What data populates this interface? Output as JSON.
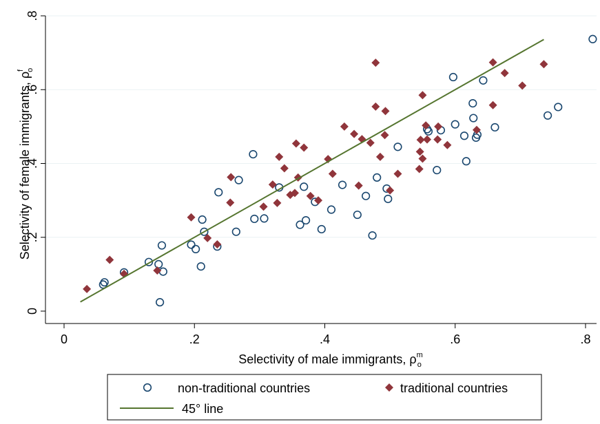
{
  "chart_data": {
    "type": "scatter",
    "xlabel": "Selectivity of male immigrants, ρ",
    "xlabel_sup": "m",
    "xlabel_sub": "o",
    "ylabel": "Selectivity of female immigrants, ρ",
    "ylabel_sup": "f",
    "ylabel_sub": "o",
    "xlim": [
      0,
      0.8
    ],
    "ylim": [
      0,
      0.8
    ],
    "x_ticks": [
      0,
      0.2,
      0.4,
      0.6,
      0.8
    ],
    "x_tick_labels": [
      "0",
      ".2",
      ".4",
      ".6",
      ".8"
    ],
    "y_ticks": [
      0,
      0.2,
      0.4,
      0.6,
      0.8
    ],
    "y_tick_labels": [
      "0",
      ".2",
      ".4",
      ".6",
      ".8"
    ],
    "grid": true,
    "legend_position": "bottom",
    "colors": {
      "non_traditional": "#1a476f",
      "traditional": "#90353b",
      "line": "#55752f",
      "grid": "#eaf2f3"
    },
    "series": [
      {
        "name": "non-traditional countries",
        "marker": "hollow-circle",
        "points": [
          [
            0.06,
            0.072
          ],
          [
            0.062,
            0.078
          ],
          [
            0.092,
            0.105
          ],
          [
            0.13,
            0.133
          ],
          [
            0.145,
            0.127
          ],
          [
            0.147,
            0.024
          ],
          [
            0.15,
            0.178
          ],
          [
            0.152,
            0.107
          ],
          [
            0.195,
            0.18
          ],
          [
            0.202,
            0.168
          ],
          [
            0.21,
            0.121
          ],
          [
            0.212,
            0.248
          ],
          [
            0.215,
            0.215
          ],
          [
            0.235,
            0.175
          ],
          [
            0.237,
            0.322
          ],
          [
            0.264,
            0.215
          ],
          [
            0.268,
            0.355
          ],
          [
            0.29,
            0.425
          ],
          [
            0.292,
            0.25
          ],
          [
            0.307,
            0.251
          ],
          [
            0.33,
            0.335
          ],
          [
            0.362,
            0.234
          ],
          [
            0.368,
            0.337
          ],
          [
            0.371,
            0.246
          ],
          [
            0.385,
            0.296
          ],
          [
            0.395,
            0.222
          ],
          [
            0.41,
            0.275
          ],
          [
            0.427,
            0.342
          ],
          [
            0.45,
            0.261
          ],
          [
            0.463,
            0.312
          ],
          [
            0.473,
            0.205
          ],
          [
            0.48,
            0.362
          ],
          [
            0.495,
            0.332
          ],
          [
            0.497,
            0.304
          ],
          [
            0.512,
            0.445
          ],
          [
            0.557,
            0.493
          ],
          [
            0.559,
            0.487
          ],
          [
            0.572,
            0.382
          ],
          [
            0.578,
            0.49
          ],
          [
            0.597,
            0.634
          ],
          [
            0.6,
            0.506
          ],
          [
            0.614,
            0.475
          ],
          [
            0.617,
            0.406
          ],
          [
            0.627,
            0.563
          ],
          [
            0.628,
            0.523
          ],
          [
            0.632,
            0.47
          ],
          [
            0.634,
            0.478
          ],
          [
            0.643,
            0.625
          ],
          [
            0.661,
            0.498
          ],
          [
            0.742,
            0.53
          ],
          [
            0.758,
            0.553
          ],
          [
            0.811,
            0.737
          ]
        ]
      },
      {
        "name": "traditional countries",
        "marker": "filled-diamond",
        "points": [
          [
            0.035,
            0.06
          ],
          [
            0.07,
            0.139
          ],
          [
            0.092,
            0.101
          ],
          [
            0.143,
            0.11
          ],
          [
            0.195,
            0.254
          ],
          [
            0.22,
            0.198
          ],
          [
            0.235,
            0.181
          ],
          [
            0.255,
            0.294
          ],
          [
            0.256,
            0.363
          ],
          [
            0.306,
            0.283
          ],
          [
            0.32,
            0.343
          ],
          [
            0.327,
            0.293
          ],
          [
            0.33,
            0.418
          ],
          [
            0.338,
            0.387
          ],
          [
            0.347,
            0.315
          ],
          [
            0.354,
            0.32
          ],
          [
            0.356,
            0.454
          ],
          [
            0.359,
            0.362
          ],
          [
            0.368,
            0.443
          ],
          [
            0.378,
            0.312
          ],
          [
            0.39,
            0.3
          ],
          [
            0.405,
            0.412
          ],
          [
            0.412,
            0.372
          ],
          [
            0.43,
            0.5
          ],
          [
            0.445,
            0.48
          ],
          [
            0.452,
            0.34
          ],
          [
            0.457,
            0.466
          ],
          [
            0.47,
            0.456
          ],
          [
            0.478,
            0.673
          ],
          [
            0.478,
            0.554
          ],
          [
            0.485,
            0.418
          ],
          [
            0.492,
            0.477
          ],
          [
            0.493,
            0.542
          ],
          [
            0.5,
            0.327
          ],
          [
            0.512,
            0.372
          ],
          [
            0.545,
            0.385
          ],
          [
            0.546,
            0.432
          ],
          [
            0.547,
            0.464
          ],
          [
            0.55,
            0.585
          ],
          [
            0.55,
            0.413
          ],
          [
            0.555,
            0.503
          ],
          [
            0.557,
            0.465
          ],
          [
            0.573,
            0.465
          ],
          [
            0.574,
            0.5
          ],
          [
            0.588,
            0.45
          ],
          [
            0.633,
            0.491
          ],
          [
            0.658,
            0.558
          ],
          [
            0.658,
            0.674
          ],
          [
            0.676,
            0.645
          ],
          [
            0.703,
            0.611
          ],
          [
            0.736,
            0.669
          ]
        ]
      },
      {
        "name": "45° line",
        "marker": "line",
        "points": [
          [
            0.025,
            0.025
          ],
          [
            0.736,
            0.736
          ]
        ]
      }
    ]
  }
}
